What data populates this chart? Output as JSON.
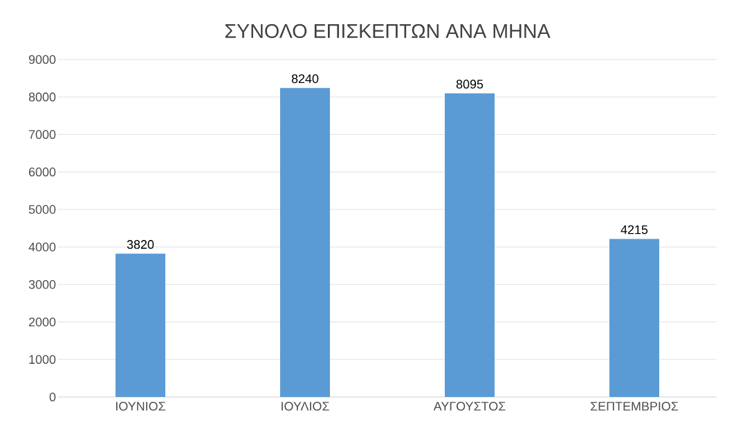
{
  "chart_data": {
    "type": "bar",
    "title": "ΣΥΝΟΛΟ ΕΠΙΣΚΕΠΤΩΝ ΑΝΑ ΜΗΝΑ",
    "categories": [
      "ΙΟΥΝΙΟΣ",
      "ΙΟΥΛΙΟΣ",
      "ΑΥΓΟΥΣΤΟΣ",
      "ΣΕΠΤΕΜΒΡΙΟΣ"
    ],
    "values": [
      3820,
      8240,
      8095,
      4215
    ],
    "color": "#5b9bd5",
    "ylim": [
      0,
      9000
    ],
    "yticks": [
      0,
      1000,
      2000,
      3000,
      4000,
      5000,
      6000,
      7000,
      8000,
      9000
    ],
    "grid": "y",
    "data_labels": true
  }
}
